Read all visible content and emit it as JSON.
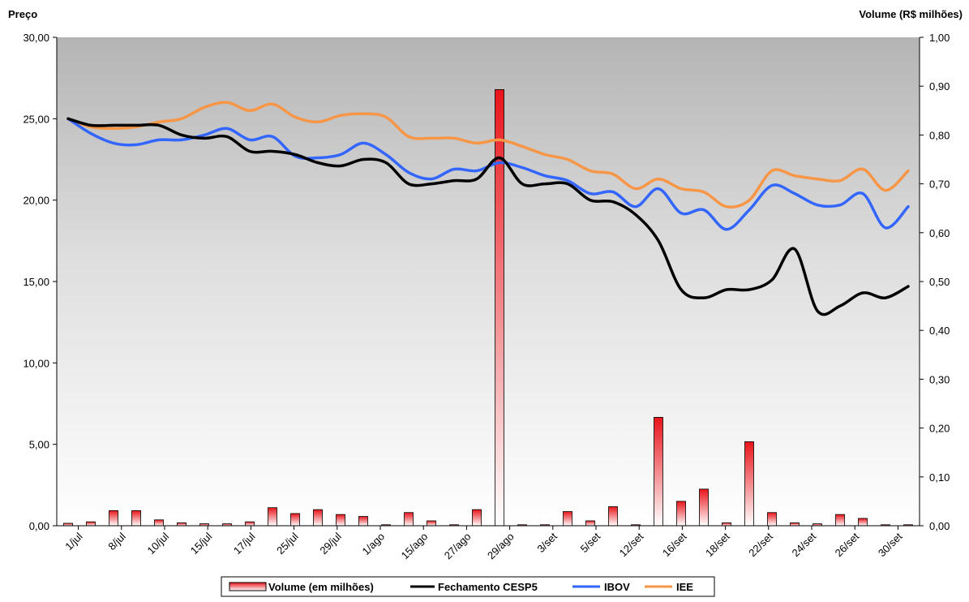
{
  "chart_data": {
    "type": "bar+line",
    "y_left_label": "Preço",
    "y_right_label": "Volume (R$ milhões)",
    "y_left_range": [
      0,
      30
    ],
    "y_right_range": [
      0,
      1.0
    ],
    "y_left_ticks": [
      "0,00",
      "5,00",
      "10,00",
      "15,00",
      "20,00",
      "25,00",
      "30,00"
    ],
    "y_right_ticks": [
      "0,00",
      "0,10",
      "0,20",
      "0,30",
      "0,40",
      "0,50",
      "0,60",
      "0,70",
      "0,80",
      "0,90",
      "1,00"
    ],
    "x_labels": [
      "1/jul",
      "8/jul",
      "10/jul",
      "15/jul",
      "17/jul",
      "25/jul",
      "29/jul",
      "1/ago",
      "15/ago",
      "27/ago",
      "29/ago",
      "3/set",
      "5/set",
      "12/set",
      "16/set",
      "18/set",
      "22/set",
      "24/set",
      "26/set",
      "30/set"
    ],
    "volume": [
      0.005,
      0.008,
      0.031,
      0.031,
      0.012,
      0.006,
      0.004,
      0.004,
      0.008,
      0.037,
      0.025,
      0.033,
      0.023,
      0.019,
      0.002,
      0.027,
      0.01,
      0.002,
      0.033,
      0.893,
      0.002,
      0.002,
      0.029,
      0.01,
      0.039,
      0.002,
      0.222,
      0.05,
      0.075,
      0.006,
      0.172,
      0.027,
      0.006,
      0.004,
      0.023,
      0.015,
      0.002,
      0.002
    ],
    "series": [
      {
        "name": "Fechamento CESP5",
        "color": "#000000",
        "values": [
          25.0,
          24.6,
          24.6,
          24.6,
          24.6,
          24.0,
          23.8,
          23.9,
          23.0,
          23.0,
          22.8,
          22.3,
          22.1,
          22.5,
          22.3,
          21.0,
          21.0,
          21.2,
          21.3,
          22.6,
          21.0,
          21.0,
          21.0,
          20.0,
          19.9,
          19.1,
          17.5,
          14.5,
          14.0,
          14.5,
          14.5,
          15.1,
          17.0,
          13.2,
          13.5,
          14.3,
          14.0,
          14.7
        ]
      },
      {
        "name": "IBOV",
        "color": "#3366ff",
        "values": [
          25.0,
          24.1,
          23.5,
          23.4,
          23.7,
          23.7,
          24.0,
          24.4,
          23.7,
          23.9,
          22.7,
          22.6,
          22.8,
          23.5,
          22.8,
          21.7,
          21.3,
          21.9,
          21.8,
          22.3,
          22.0,
          21.5,
          21.2,
          20.4,
          20.5,
          19.6,
          20.7,
          19.2,
          19.4,
          18.2,
          19.4,
          20.9,
          20.4,
          19.7,
          19.7,
          20.4,
          18.3,
          19.6
        ]
      },
      {
        "name": "IEE",
        "color": "#f79646",
        "values": [
          25.0,
          24.5,
          24.4,
          24.5,
          24.8,
          25.0,
          25.7,
          26.0,
          25.5,
          25.9,
          25.1,
          24.8,
          25.2,
          25.3,
          25.1,
          23.9,
          23.8,
          23.8,
          23.5,
          23.7,
          23.3,
          22.8,
          22.5,
          21.8,
          21.6,
          20.7,
          21.3,
          20.7,
          20.5,
          19.6,
          20.0,
          21.8,
          21.5,
          21.3,
          21.2,
          21.9,
          20.6,
          21.8
        ]
      }
    ],
    "legend": [
      {
        "name": "Volume (em milhões)",
        "type": "bar"
      },
      {
        "name": "Fechamento CESP5",
        "type": "line",
        "color": "#000000"
      },
      {
        "name": "IBOV",
        "type": "line",
        "color": "#3366ff"
      },
      {
        "name": "IEE",
        "type": "line",
        "color": "#f79646"
      }
    ],
    "legend_position": "bottom",
    "grid": false
  }
}
